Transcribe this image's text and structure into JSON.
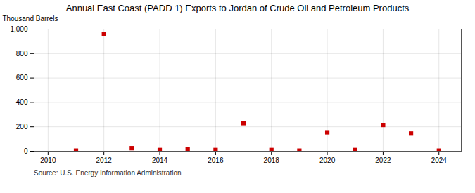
{
  "chart_data": {
    "type": "scatter",
    "title": "Annual East Coast (PADD 1) Exports to Jordan of Crude Oil and Petroleum Products",
    "ylabel": "Thousand Barrels",
    "source": "Source: U.S. Energy Information Administration",
    "x": [
      2011,
      2012,
      2013,
      2014,
      2015,
      2016,
      2017,
      2018,
      2019,
      2020,
      2021,
      2022,
      2023,
      2024
    ],
    "values": [
      5,
      960,
      25,
      10,
      15,
      10,
      230,
      10,
      5,
      155,
      10,
      215,
      145,
      5
    ],
    "color": "#cc0000",
    "marker": "square",
    "xlim": [
      2009.5,
      2024.8
    ],
    "xticks": [
      2010,
      2012,
      2014,
      2016,
      2018,
      2020,
      2022,
      2024
    ],
    "ylim": [
      0,
      1000
    ],
    "yticks": [
      0,
      200,
      400,
      600,
      800,
      {
        "value": 1000,
        "label": "1,000"
      }
    ],
    "grid": true
  }
}
